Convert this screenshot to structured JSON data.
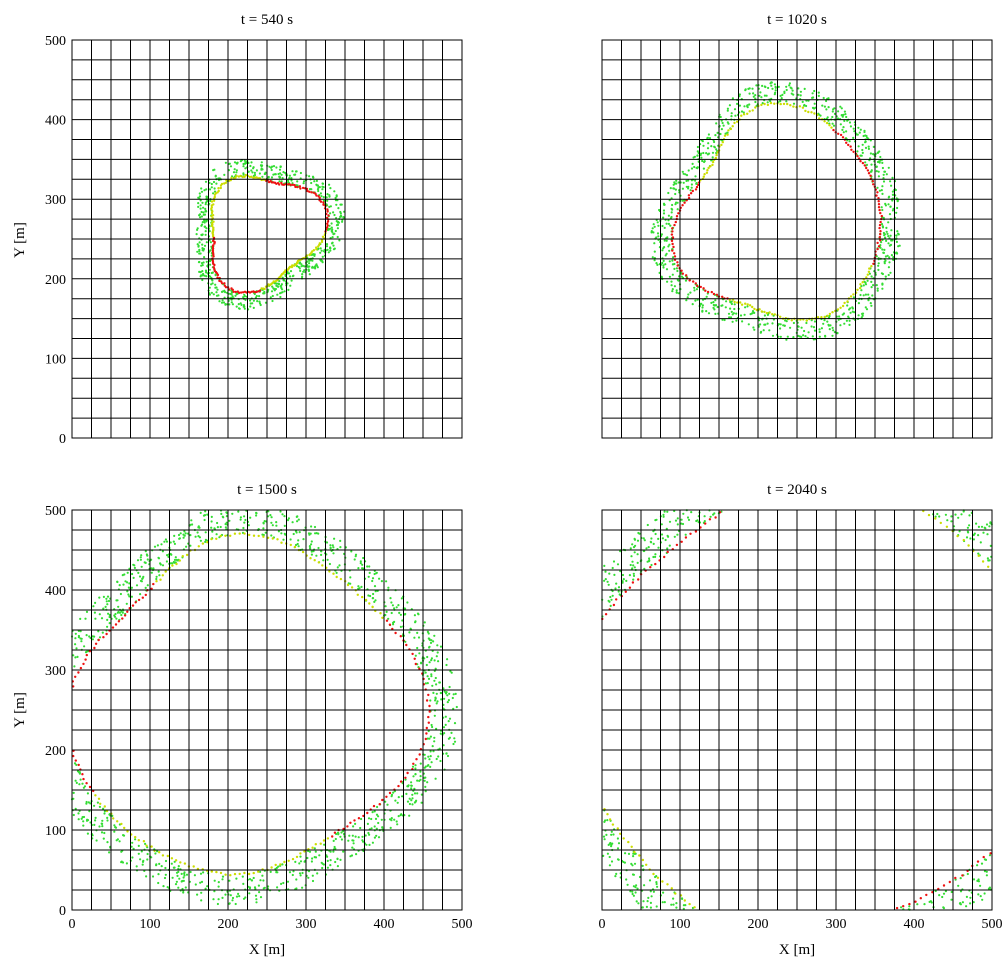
{
  "chart_data": [
    {
      "type": "scatter",
      "title": "t = 540 s",
      "xlabel": "",
      "ylabel": "Y [m]",
      "xlim": [
        0,
        500
      ],
      "ylim": [
        0,
        500
      ],
      "xticks": [],
      "yticks": [
        "0",
        "100",
        "200",
        "300",
        "400",
        "500"
      ],
      "grid": true,
      "grid_step": 25,
      "blobs": [
        {
          "cx": 245,
          "cy": 255,
          "lobes": [
            [
              0.4,
              35
            ],
            [
              2.2,
              30
            ],
            [
              4.1,
              28
            ]
          ],
          "ri": 52,
          "ro": 92
        }
      ]
    },
    {
      "type": "scatter",
      "title": "t = 1020 s",
      "xlabel": "",
      "ylabel": "",
      "xlim": [
        0,
        500
      ],
      "ylim": [
        0,
        500
      ],
      "xticks": [],
      "yticks": [],
      "grid": true,
      "grid_step": 25,
      "blobs": [
        {
          "cx": 225,
          "cy": 275,
          "lobes": [
            [
              1.6,
              60
            ],
            [
              3.5,
              55
            ],
            [
              5.2,
              50
            ],
            [
              0.2,
              45
            ]
          ],
          "ri": 85,
          "ro": 135
        }
      ]
    },
    {
      "type": "scatter",
      "title": "t = 1500 s",
      "xlabel": "X [m]",
      "ylabel": "Y [m]",
      "xlim": [
        0,
        500
      ],
      "ylim": [
        0,
        500
      ],
      "xticks": [
        "0",
        "100",
        "200",
        "300",
        "400",
        "500"
      ],
      "yticks": [
        "0",
        "100",
        "200",
        "300",
        "400",
        "500"
      ],
      "grid": true,
      "grid_step": 25,
      "blobs": [
        {
          "cx": 215,
          "cy": 255,
          "lobes": [
            [
              1.55,
              85
            ],
            [
              3.2,
              90
            ],
            [
              4.5,
              75
            ],
            [
              0.1,
              95
            ],
            [
              5.6,
              40
            ]
          ],
          "ri": 130,
          "ro": 200
        }
      ]
    },
    {
      "type": "scatter",
      "title": "t = 2040 s",
      "xlabel": "X [m]",
      "ylabel": "",
      "xlim": [
        0,
        500
      ],
      "ylim": [
        0,
        500
      ],
      "xticks": [
        "0",
        "100",
        "200",
        "300",
        "400",
        "500"
      ],
      "yticks": [],
      "grid": true,
      "grid_step": 25,
      "blobs": [
        {
          "cx": 235,
          "cy": 240,
          "lobes": [
            [
              1.55,
              105
            ],
            [
              3.0,
              110
            ],
            [
              4.4,
              95
            ],
            [
              0.05,
              130
            ],
            [
              5.5,
              80
            ],
            [
              0.8,
              60
            ]
          ],
          "ri": 165,
          "ro": 245
        }
      ]
    }
  ],
  "legend": {
    "colors": {
      "green": "#33dd33",
      "yellow": "#ccdd00",
      "red": "#ee1111",
      "grid": "#000000"
    }
  }
}
